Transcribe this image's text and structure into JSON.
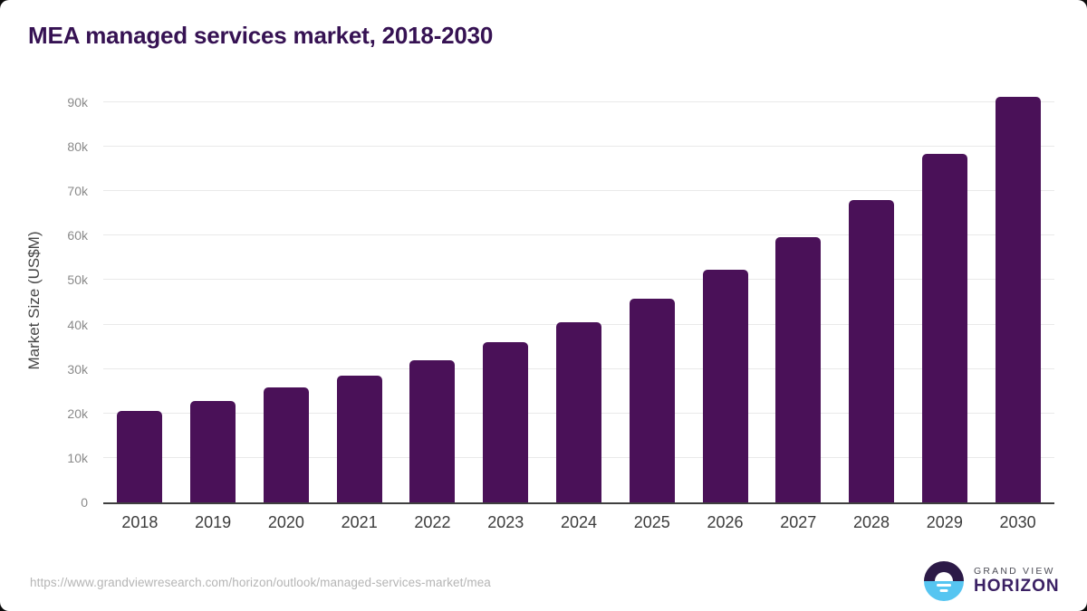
{
  "title": "MEA managed services market, 2018-2030",
  "colors": {
    "bar": "#4a1158",
    "title": "#361253",
    "ytick_label": "#8a8a8a",
    "xtick_label": "#3c3c3c",
    "gridline": "#e9e9e9",
    "baseline": "#3f3f3f",
    "url_text": "#b5b5b5",
    "logo_top_half": "#2c1a47",
    "logo_bottom_half": "#56c5f1",
    "logo_horizon_text": "#3b2164"
  },
  "chart_data": {
    "type": "bar",
    "title": "MEA managed services market, 2018-2030",
    "categories": [
      "2018",
      "2019",
      "2020",
      "2021",
      "2022",
      "2023",
      "2024",
      "2025",
      "2026",
      "2027",
      "2028",
      "2029",
      "2030"
    ],
    "values": [
      20500,
      22900,
      25800,
      28600,
      32000,
      36100,
      40600,
      45900,
      52300,
      59700,
      68100,
      78400,
      91200
    ],
    "unit": "US$M",
    "xlabel": "",
    "ylabel": "Market Size (US$M)",
    "ylim": [
      0,
      91600
    ],
    "yticks": [
      0,
      10000,
      20000,
      30000,
      40000,
      50000,
      60000,
      70000,
      80000,
      90000
    ],
    "ytick_labels": [
      "0",
      "10k",
      "20k",
      "30k",
      "40k",
      "50k",
      "60k",
      "70k",
      "80k",
      "90k"
    ],
    "grid": true,
    "legend": false,
    "bar_color": "#4a1158"
  },
  "footer": {
    "source_url": "https://www.grandviewresearch.com/horizon/outlook/managed-services-market/mea",
    "logo": {
      "line1": "GRAND VIEW",
      "line2": "HORIZON"
    }
  }
}
